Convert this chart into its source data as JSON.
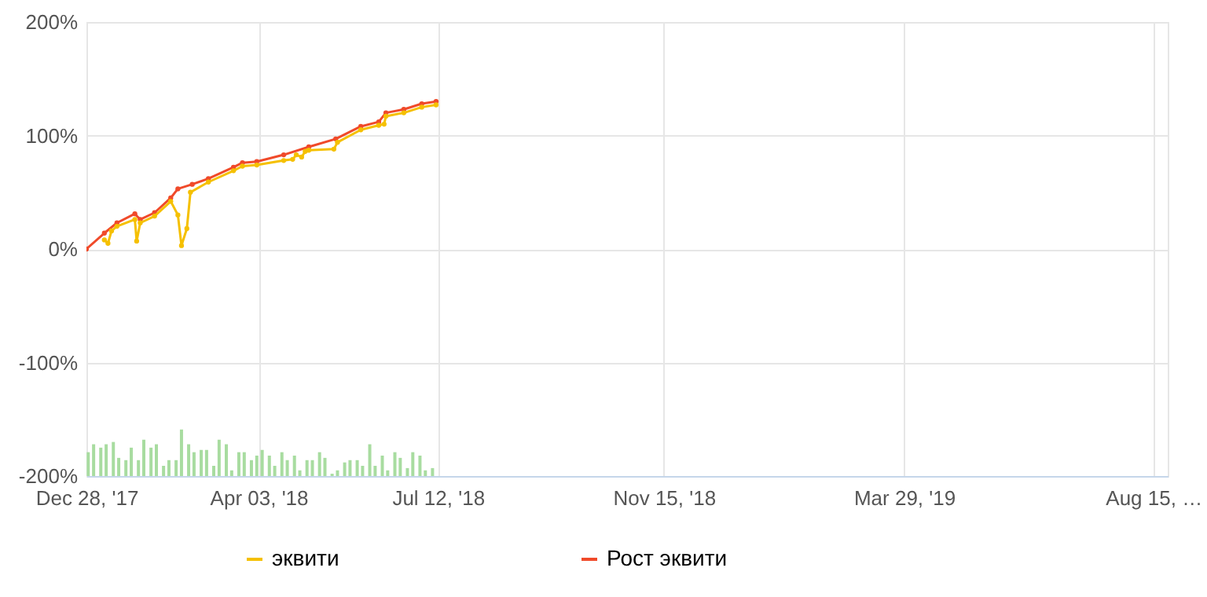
{
  "chart_data": {
    "type": "line",
    "xlim": [
      "2017-12-28",
      "2019-08-23"
    ],
    "ylim": [
      -200,
      200
    ],
    "xticks": [
      {
        "value": "2017-12-28",
        "label": "Dec 28, '17"
      },
      {
        "value": "2018-04-03",
        "label": "Apr 03, '18"
      },
      {
        "value": "2018-07-12",
        "label": "Jul 12, '18"
      },
      {
        "value": "2018-11-15",
        "label": "Nov 15, '18"
      },
      {
        "value": "2019-03-29",
        "label": "Mar 29, '19"
      },
      {
        "value": "2019-08-15",
        "label": "Aug 15, …"
      }
    ],
    "yticks": [
      {
        "value": -200,
        "label": "-200%"
      },
      {
        "value": -100,
        "label": "-100%"
      },
      {
        "value": 0,
        "label": "0%"
      },
      {
        "value": 100,
        "label": "100%"
      },
      {
        "value": 200,
        "label": "200%"
      }
    ],
    "grid": true,
    "legend": "bottom",
    "marker": "circle",
    "line_style": "solid",
    "series": [
      {
        "type": "bar",
        "color": "#a8dca0",
        "x": [
          "2017-12-29",
          "2018-01-01",
          "2018-01-05",
          "2018-01-08",
          "2018-01-12",
          "2018-01-15",
          "2018-01-19",
          "2018-01-22",
          "2018-01-26",
          "2018-01-29",
          "2018-02-02",
          "2018-02-05",
          "2018-02-09",
          "2018-02-12",
          "2018-02-16",
          "2018-02-19",
          "2018-02-23",
          "2018-02-26",
          "2018-03-02",
          "2018-03-05",
          "2018-03-09",
          "2018-03-12",
          "2018-03-16",
          "2018-03-19",
          "2018-03-23",
          "2018-03-26",
          "2018-03-30",
          "2018-04-02",
          "2018-04-05",
          "2018-04-09",
          "2018-04-12",
          "2018-04-16",
          "2018-04-19",
          "2018-04-23",
          "2018-04-26",
          "2018-04-30",
          "2018-05-03",
          "2018-05-07",
          "2018-05-10",
          "2018-05-14",
          "2018-05-17",
          "2018-05-21",
          "2018-05-24",
          "2018-05-28",
          "2018-05-31",
          "2018-06-04",
          "2018-06-07",
          "2018-06-11",
          "2018-06-14",
          "2018-06-18",
          "2018-06-21",
          "2018-06-25",
          "2018-06-28",
          "2018-07-02",
          "2018-07-05",
          "2018-07-09"
        ],
        "base": [
          -200,
          -200,
          -200,
          -200,
          -200,
          -200,
          -200,
          -200,
          -200,
          -200,
          -200,
          -200,
          -200,
          -200,
          -200,
          -200,
          -200,
          -200,
          -200,
          -200,
          -200,
          -200,
          -200,
          -200,
          -200,
          -200,
          -200,
          -200,
          -200,
          -200,
          -200,
          -200,
          -200,
          -200,
          -200,
          -200,
          -200,
          -200,
          -200,
          -200,
          -200,
          -200,
          -200,
          -200,
          -200,
          -200,
          -200,
          -200,
          -200,
          -200,
          -200,
          -200,
          -200,
          -200,
          -200,
          -200
        ],
        "values": [
          21,
          28,
          25,
          28,
          30,
          16,
          14,
          25,
          14,
          32,
          25,
          28,
          9,
          14,
          14,
          41,
          28,
          21,
          23,
          23,
          9,
          32,
          28,
          5,
          21,
          21,
          14,
          18,
          23,
          18,
          9,
          21,
          14,
          18,
          5,
          14,
          14,
          21,
          16,
          2,
          5,
          12,
          14,
          14,
          9,
          28,
          9,
          18,
          5,
          21,
          16,
          7,
          21,
          18,
          5,
          7
        ]
      },
      {
        "name": "эквити",
        "color": "#f5c000",
        "x": [
          "2018-01-07",
          "2018-01-09",
          "2018-01-11",
          "2018-01-14",
          "2018-01-24",
          "2018-01-25",
          "2018-01-27",
          "2018-02-04",
          "2018-02-13",
          "2018-02-17",
          "2018-02-19",
          "2018-02-22",
          "2018-02-24",
          "2018-03-06",
          "2018-03-20",
          "2018-03-25",
          "2018-04-02",
          "2018-04-17",
          "2018-04-22",
          "2018-04-24",
          "2018-04-27",
          "2018-04-29",
          "2018-05-01",
          "2018-05-15",
          "2018-05-17",
          "2018-05-30",
          "2018-06-09",
          "2018-06-12",
          "2018-06-13",
          "2018-06-23",
          "2018-07-03",
          "2018-07-11"
        ],
        "values": [
          8,
          5,
          16,
          20,
          26,
          7,
          23,
          29,
          42,
          30,
          3,
          18,
          50,
          59,
          69,
          73,
          74,
          78,
          79,
          83,
          81,
          86,
          87,
          88,
          94,
          105,
          109,
          110,
          117,
          120,
          125,
          127
        ]
      },
      {
        "name": "Рост эквити",
        "color": "#f04a2a",
        "x": [
          "2017-12-28",
          "2018-01-07",
          "2018-01-14",
          "2018-01-24",
          "2018-01-27",
          "2018-02-04",
          "2018-02-13",
          "2018-02-17",
          "2018-02-25",
          "2018-03-06",
          "2018-03-20",
          "2018-03-25",
          "2018-04-02",
          "2018-04-17",
          "2018-05-01",
          "2018-05-16",
          "2018-05-30",
          "2018-06-09",
          "2018-06-13",
          "2018-06-23",
          "2018-07-03",
          "2018-07-11"
        ],
        "values": [
          0,
          14,
          23,
          31,
          26,
          32,
          45,
          53,
          57,
          62,
          72,
          76,
          77,
          83,
          90,
          97,
          108,
          112,
          120,
          123,
          128,
          130
        ]
      }
    ]
  }
}
